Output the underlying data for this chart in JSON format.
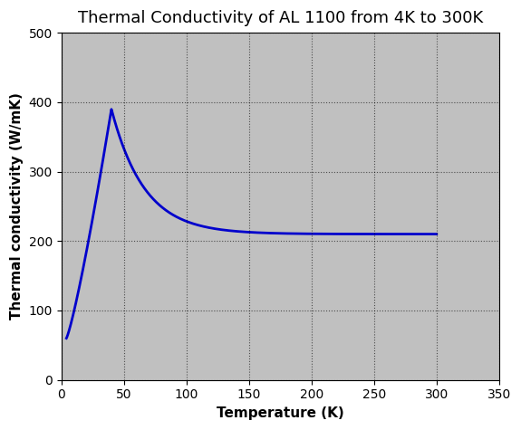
{
  "title": "Thermal Conductivity of AL 1100 from 4K to 300K",
  "xlabel": "Temperature (K)",
  "ylabel": "Thermal conductivity (W/mK)",
  "xlim": [
    0,
    350
  ],
  "ylim": [
    0,
    500
  ],
  "xticks": [
    0,
    50,
    100,
    150,
    200,
    250,
    300,
    350
  ],
  "yticks": [
    0,
    100,
    200,
    300,
    400,
    500
  ],
  "line_color": "#0000cc",
  "line_width": 2.0,
  "fig_bg_color": "#ffffff",
  "plot_bg_color": "#c0c0c0",
  "grid_color": "#000000",
  "title_fontsize": 13,
  "label_fontsize": 11,
  "label_fontweight": "bold",
  "tick_fontsize": 10,
  "peak_T": 40,
  "peak_k": 390,
  "start_T": 4,
  "start_k": 60,
  "end_T": 300,
  "end_k": 210
}
